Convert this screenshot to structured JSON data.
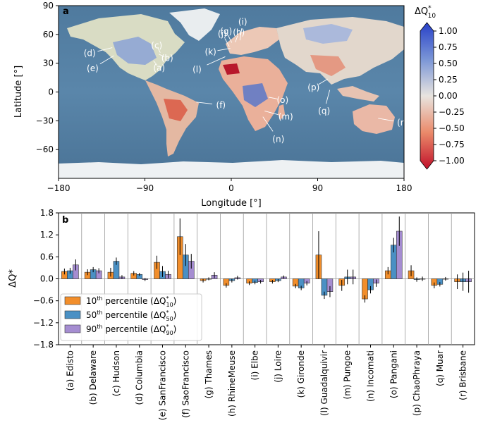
{
  "chart_data": [
    {
      "type": "heatmap",
      "panel_label": "a",
      "xlabel": "Longitude [°]",
      "ylabel": "Latitude [°]",
      "xlim": [
        -180,
        180
      ],
      "ylim": [
        -90,
        90
      ],
      "xticks": [
        "−180",
        "−90",
        "0",
        "90",
        "180"
      ],
      "yticks": [
        "90",
        "60",
        "30",
        "0",
        "−30",
        "−60"
      ],
      "colorbar": {
        "title": "ΔQ*10",
        "title_main": "ΔQ",
        "title_sup": "*",
        "title_sub": "10",
        "range": [
          -1.0,
          1.0
        ],
        "ticks": [
          "1.00",
          "0.75",
          "0.50",
          "0.25",
          "0.00",
          "−0.25",
          "−0.50",
          "−0.75",
          "−1.00"
        ],
        "colors": {
          "high": "#2740c8",
          "mid": "#e8e4df",
          "low": "#c0102a"
        }
      },
      "rivers": [
        {
          "label": "(a)",
          "lon": -81,
          "lat": 32.5
        },
        {
          "label": "(b)",
          "lon": -75.5,
          "lat": 39.5
        },
        {
          "label": "(c)",
          "lon": -74,
          "lat": 41
        },
        {
          "label": "(d)",
          "lon": -124,
          "lat": 46.2
        },
        {
          "label": "(e)",
          "lon": -122.4,
          "lat": 37.8
        },
        {
          "label": "(f)",
          "lon": -36.5,
          "lat": -10.5
        },
        {
          "label": "(g)",
          "lon": 0.5,
          "lat": 51.5
        },
        {
          "label": "(h)",
          "lon": 4.2,
          "lat": 51.9
        },
        {
          "label": "(i)",
          "lon": 9,
          "lat": 53.9
        },
        {
          "label": "(j)",
          "lon": -2,
          "lat": 47.3
        },
        {
          "label": "(k)",
          "lon": -1,
          "lat": 45.5
        },
        {
          "label": "(l)",
          "lon": -6.3,
          "lat": 36.8
        },
        {
          "label": "(m)",
          "lon": 34.7,
          "lat": -19.8
        },
        {
          "label": "(n)",
          "lon": 32.9,
          "lat": -25.8
        },
        {
          "label": "(o)",
          "lon": 38.8,
          "lat": -5.4
        },
        {
          "label": "(p)",
          "lon": 100.5,
          "lat": 13.6
        },
        {
          "label": "(q)",
          "lon": 102.6,
          "lat": 2.1
        },
        {
          "label": "(r)",
          "lon": 153,
          "lat": -27.4
        }
      ]
    },
    {
      "type": "bar",
      "panel_label": "b",
      "ylabel": "ΔQ*",
      "ylim": [
        -1.8,
        1.8
      ],
      "yticks": [
        "1.8",
        "1.2",
        "0.6",
        "0.0",
        "−0.6",
        "−1.2",
        "−1.8"
      ],
      "categories": [
        "(a) Edisto",
        "(b) Delaware",
        "(c) Hudson",
        "(d) Columbia",
        "(e) SanFrancisco",
        "(f) SaoFrancisco",
        "(g) Thames",
        "(h) RhineMeuse",
        "(i) Elbe",
        "(j) Loire",
        "(k) Gironde",
        "(l) Guadalquivir",
        "(m) Pungoe",
        "(n) Incomati",
        "(o) Pangani",
        "(p) ChaoPhraya",
        "(q) Muar",
        "(r) Brisbane"
      ],
      "series": [
        {
          "name": "10th percentile (ΔQ*10)",
          "name_main": "10",
          "name_sup": "th",
          "name_rest": " percentile (",
          "name_sym": "ΔQ",
          "name_star": "*",
          "name_sub": "10",
          "name_end": ")",
          "color": "#f28e2b",
          "values": [
            0.2,
            0.18,
            0.18,
            0.15,
            0.45,
            1.15,
            -0.05,
            -0.18,
            -0.12,
            -0.08,
            -0.2,
            0.65,
            -0.18,
            -0.55,
            0.22,
            0.22,
            -0.18,
            -0.08
          ],
          "err": [
            0.08,
            0.08,
            0.12,
            0.06,
            0.18,
            0.5,
            0.05,
            0.06,
            0.05,
            0.05,
            0.06,
            0.65,
            0.15,
            0.1,
            0.1,
            0.15,
            0.08,
            0.2
          ]
        },
        {
          "name": "50th percentile (ΔQ*50)",
          "name_main": "50",
          "name_sup": "th",
          "name_rest": " percentile (",
          "name_sym": "ΔQ",
          "name_star": "*",
          "name_sub": "50",
          "name_end": ")",
          "color": "#4a90c4",
          "values": [
            0.22,
            0.25,
            0.48,
            0.12,
            0.2,
            0.65,
            0.0,
            -0.05,
            -0.1,
            -0.05,
            -0.25,
            -0.45,
            0.05,
            -0.3,
            0.92,
            -0.02,
            -0.15,
            -0.08
          ],
          "err": [
            0.08,
            0.07,
            0.1,
            0.04,
            0.15,
            0.3,
            0.04,
            0.05,
            0.05,
            0.04,
            0.06,
            0.1,
            0.2,
            0.1,
            0.2,
            0.06,
            0.06,
            0.25
          ]
        },
        {
          "name": "90th percentile (ΔQ*90)",
          "name_main": "90",
          "name_sup": "th",
          "name_rest": " percentile (",
          "name_sym": "ΔQ",
          "name_star": "*",
          "name_sub": "90",
          "name_end": ")",
          "color": "#a58dd1",
          "values": [
            0.38,
            0.22,
            0.05,
            -0.02,
            0.12,
            0.48,
            0.1,
            0.03,
            -0.08,
            0.05,
            -0.12,
            -0.35,
            0.05,
            -0.12,
            1.3,
            0.0,
            0.0,
            -0.08
          ],
          "err": [
            0.15,
            0.07,
            0.05,
            0.04,
            0.1,
            0.2,
            0.08,
            0.05,
            0.05,
            0.04,
            0.06,
            0.15,
            0.2,
            0.1,
            0.4,
            0.06,
            0.05,
            0.3
          ]
        }
      ]
    }
  ]
}
